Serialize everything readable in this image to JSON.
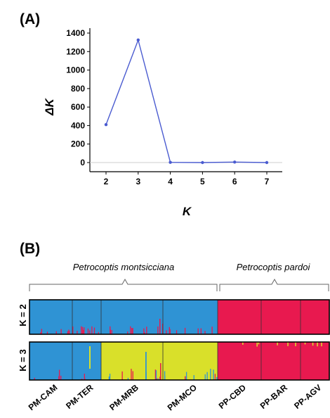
{
  "panel_a_label": "(A)",
  "panel_b_label": "(B)",
  "colors": {
    "line": "#4a5bd0",
    "blue": "#2f93d4",
    "red": "#e8194f",
    "yellow": "#d9e02a"
  },
  "chart_data": [
    {
      "type": "line",
      "title": "",
      "xlabel": "K",
      "ylabel": "ΔK",
      "x": [
        2,
        3,
        4,
        5,
        6,
        7
      ],
      "series": [
        {
          "values": [
            410,
            1325,
            2,
            0,
            5,
            0
          ]
        }
      ],
      "xlim": [
        1.5,
        7.5
      ],
      "ylim": [
        0,
        1450
      ],
      "yticks": [
        "0",
        "200",
        "400",
        "600",
        "800",
        "1000",
        "1200",
        "1400"
      ],
      "xticks": [
        "2",
        "3",
        "4",
        "5",
        "6",
        "7"
      ],
      "grid": false
    },
    {
      "type": "bar",
      "subtype": "stacked-structure-barplot",
      "species_labels": [
        "Petrocoptis montsicciana",
        "Petrocoptis pardoi"
      ],
      "rows": [
        {
          "label": "K = 2",
          "clusters": [
            "blue",
            "red"
          ],
          "assignment": [
            "blue",
            "blue",
            "blue",
            "blue",
            "red",
            "red",
            "red"
          ]
        },
        {
          "label": "K = 3",
          "clusters": [
            "blue",
            "yellow",
            "red"
          ],
          "assignment": [
            "blue",
            "blue",
            "yellow",
            "yellow",
            "red",
            "red",
            "red"
          ]
        }
      ],
      "categories": [
        "PM-CAM",
        "PM-TER",
        "PM-MRB",
        "PM-MCO",
        "PP-CBD",
        "PP-BAR",
        "PP-AGV"
      ]
    }
  ]
}
